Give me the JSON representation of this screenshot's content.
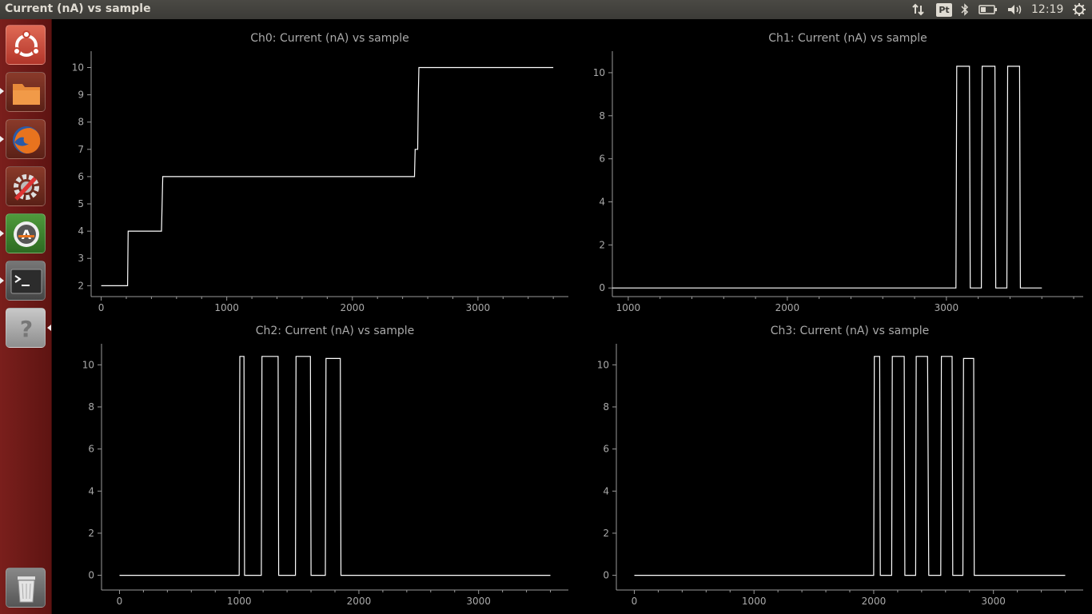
{
  "window": {
    "title": "Current (nA) vs sample"
  },
  "panel": {
    "clock": "12:19",
    "indicators": [
      "network-icon",
      "keyboard-layout-icon",
      "bluetooth-icon",
      "battery-icon",
      "volume-icon",
      "session-gear-icon"
    ],
    "keyboard_layout": "Pt"
  },
  "launcher": {
    "items": [
      {
        "name": "ubuntu-dash-icon",
        "color": "#c64433"
      },
      {
        "name": "files-icon",
        "color": "#d9742a"
      },
      {
        "name": "firefox-icon",
        "color": "#d95b1f"
      },
      {
        "name": "system-settings-icon",
        "color": "#b5462b"
      },
      {
        "name": "software-updater-icon",
        "color": "#3b7f2d"
      },
      {
        "name": "terminal-icon",
        "color": "#4a4a4a"
      },
      {
        "name": "help-icon",
        "color": "#9a9a9a"
      },
      {
        "name": "trash-icon",
        "color": "#8a8a8a"
      }
    ]
  },
  "chart_data": [
    {
      "type": "line",
      "title": "Ch0: Current (nA) vs sample",
      "xlim": [
        -80,
        3720
      ],
      "ylim": [
        1.6,
        10.6
      ],
      "xticks": [
        0,
        1000,
        2000,
        3000
      ],
      "yticks": [
        2,
        3,
        4,
        5,
        6,
        7,
        8,
        9,
        10
      ],
      "color": "#ffffff",
      "series": [
        {
          "x": [
            0,
            210,
            215,
            480,
            485,
            490,
            2495,
            2500,
            2520,
            2525,
            2530,
            3600
          ],
          "y": [
            2,
            2,
            4,
            4,
            5,
            6,
            6,
            7,
            7,
            9,
            10,
            10
          ]
        }
      ]
    },
    {
      "type": "line",
      "title": "Ch1: Current (nA) vs sample",
      "xlim": [
        900,
        3860
      ],
      "ylim": [
        -0.4,
        11.0
      ],
      "xticks": [
        1000,
        2000,
        3000
      ],
      "yticks": [
        0,
        2,
        4,
        6,
        8,
        10
      ],
      "color": "#ffffff",
      "series": [
        {
          "x": [
            900,
            3060,
            3065,
            3145,
            3150,
            3220,
            3225,
            3305,
            3310,
            3380,
            3385,
            3460,
            3465,
            3600
          ],
          "y": [
            0,
            0,
            10.3,
            10.3,
            0,
            0,
            10.3,
            10.3,
            0,
            0,
            10.3,
            10.3,
            0,
            0
          ]
        }
      ]
    },
    {
      "type": "line",
      "title": "Ch2: Current (nA) vs sample",
      "xlim": [
        -150,
        3750
      ],
      "ylim": [
        -0.7,
        11.0
      ],
      "xticks": [
        0,
        1000,
        2000,
        3000
      ],
      "yticks": [
        0,
        2,
        4,
        6,
        8,
        10
      ],
      "color": "#ffffff",
      "series": [
        {
          "x": [
            0,
            1000,
            1005,
            1040,
            1045,
            1185,
            1190,
            1325,
            1330,
            1470,
            1475,
            1595,
            1600,
            1720,
            1725,
            1845,
            1850,
            3600
          ],
          "y": [
            0,
            0,
            10.4,
            10.4,
            0,
            0,
            10.4,
            10.4,
            0,
            0,
            10.4,
            10.4,
            0,
            0,
            10.3,
            10.3,
            0,
            0
          ]
        }
      ]
    },
    {
      "type": "line",
      "title": "Ch3: Current (nA) vs sample",
      "xlim": [
        -150,
        3750
      ],
      "ylim": [
        -0.7,
        11.0
      ],
      "xticks": [
        0,
        1000,
        2000,
        3000
      ],
      "yticks": [
        0,
        2,
        4,
        6,
        8,
        10
      ],
      "color": "#ffffff",
      "series": [
        {
          "x": [
            0,
            2000,
            2005,
            2050,
            2055,
            2150,
            2155,
            2255,
            2260,
            2350,
            2355,
            2450,
            2460,
            2560,
            2565,
            2655,
            2660,
            2745,
            2750,
            2835,
            2840,
            3600
          ],
          "y": [
            0,
            0,
            10.4,
            10.4,
            0,
            0,
            10.4,
            10.4,
            0,
            0,
            10.4,
            10.4,
            0,
            0,
            10.4,
            10.4,
            0,
            0,
            10.3,
            10.3,
            0,
            0
          ]
        }
      ]
    }
  ]
}
